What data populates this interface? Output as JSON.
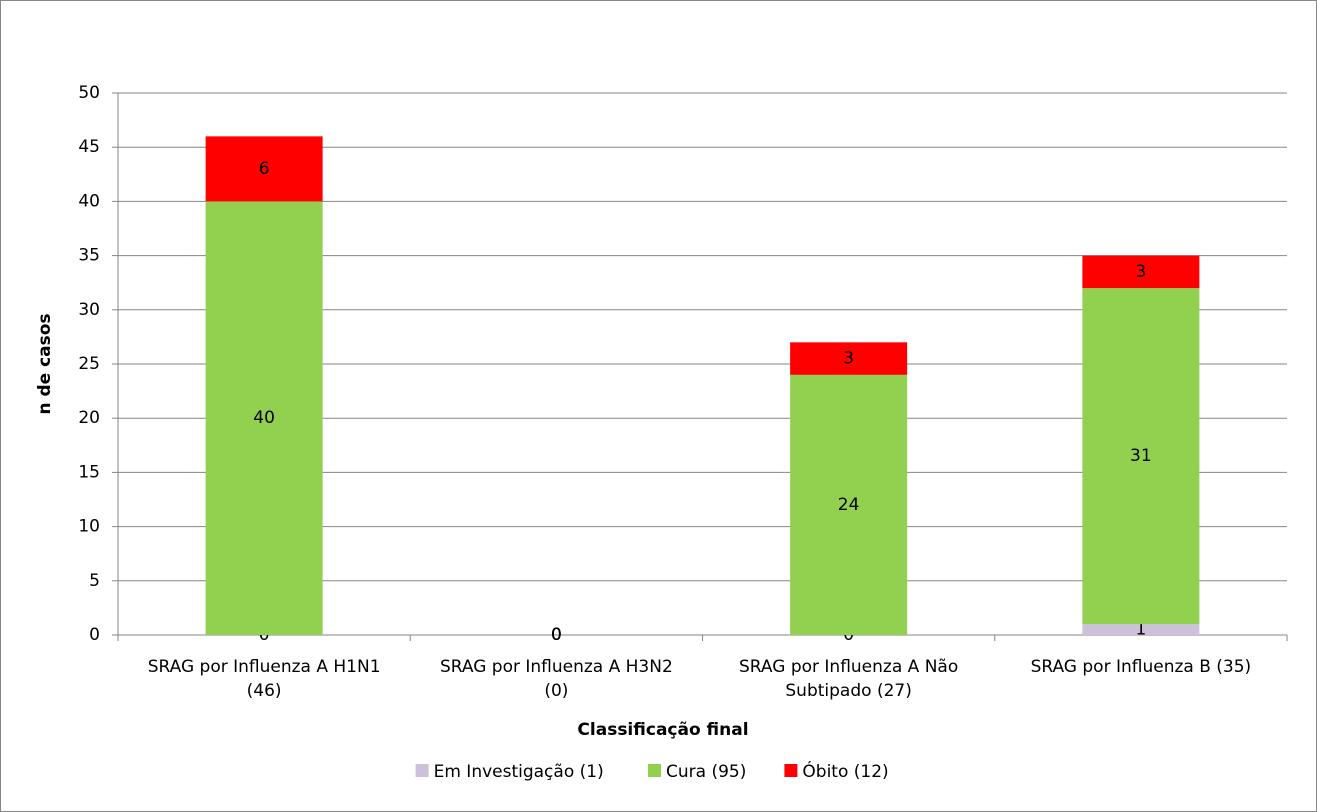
{
  "chart_data": {
    "type": "stacked-bar",
    "x_label": "Classificação final",
    "y_label": "n de casos",
    "categories": [
      [
        "SRAG por Influenza A H1N1",
        "(46)"
      ],
      [
        "SRAG por Influenza A H3N2",
        "(0)"
      ],
      [
        "SRAG por Influenza A Não",
        "Subtipado (27)"
      ],
      [
        "SRAG por Influenza B (35)"
      ]
    ],
    "series": [
      {
        "name": "Em Investigação (1)",
        "color": "#ccc0da",
        "values": [
          0,
          0,
          0,
          1
        ]
      },
      {
        "name": "Cura (95)",
        "color": "#92d050",
        "values": [
          40,
          0,
          24,
          31
        ]
      },
      {
        "name": "Óbito (12)",
        "color": "#ff0000",
        "values": [
          6,
          0,
          3,
          3
        ]
      }
    ],
    "ylim": [
      0,
      50
    ],
    "yticks": [
      0,
      5,
      10,
      15,
      20,
      25,
      30,
      35,
      40,
      45,
      50
    ],
    "grid": true,
    "legend": "bottom"
  }
}
